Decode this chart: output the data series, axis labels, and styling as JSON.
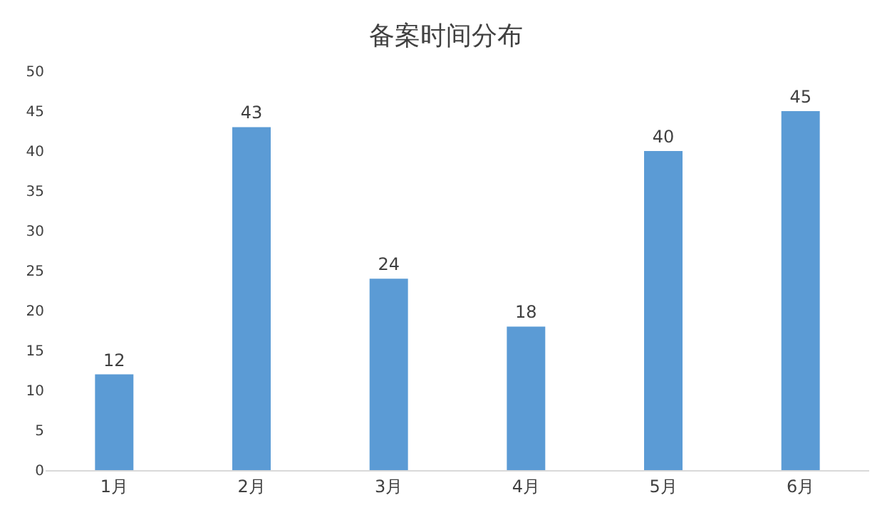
{
  "chart_data": {
    "type": "bar",
    "title": "备案时间分布",
    "categories": [
      "1月",
      "2月",
      "3月",
      "4月",
      "5月",
      "6月"
    ],
    "values": [
      12,
      43,
      24,
      18,
      40,
      45
    ],
    "color": "#5b9bd5",
    "ylim": [
      0,
      50
    ],
    "yticks": [
      0,
      5,
      10,
      15,
      20,
      25,
      30,
      35,
      40,
      45,
      50
    ],
    "grid": false,
    "data_labels": true
  }
}
